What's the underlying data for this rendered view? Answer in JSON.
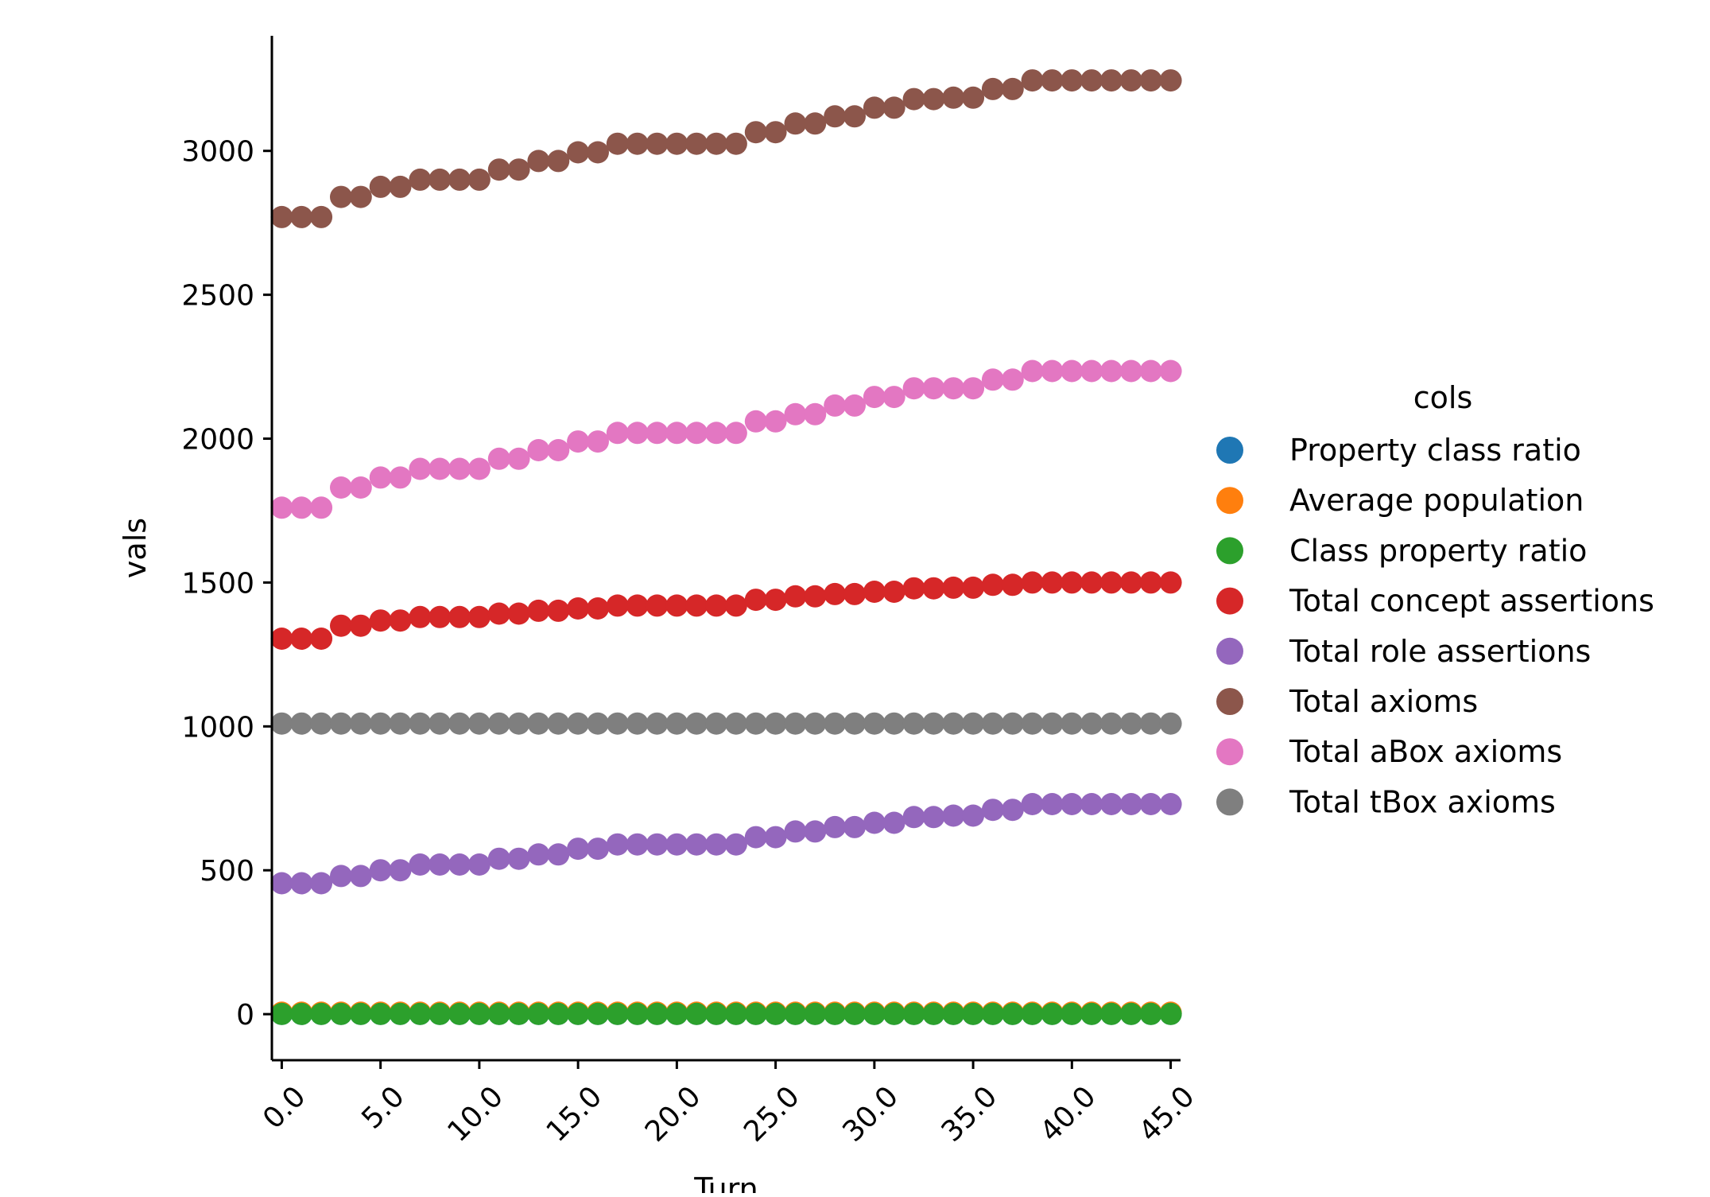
{
  "chart_data": {
    "type": "scatter",
    "title": "",
    "xlabel": "Turn",
    "ylabel": "vals",
    "xlim": [
      -0.5,
      45.5
    ],
    "ylim": [
      -160,
      3400
    ],
    "grid": false,
    "x_ticks": [
      0,
      5,
      10,
      15,
      20,
      25,
      30,
      35,
      40,
      45
    ],
    "x_tick_labels": [
      "0.0",
      "5.0",
      "10.0",
      "15.0",
      "20.0",
      "25.0",
      "30.0",
      "35.0",
      "40.0",
      "45.0"
    ],
    "y_ticks": [
      0,
      500,
      1000,
      1500,
      2000,
      2500,
      3000
    ],
    "y_tick_labels": [
      "0",
      "500",
      "1000",
      "1500",
      "2000",
      "2500",
      "3000"
    ],
    "legend": {
      "title": "cols",
      "placement": "right"
    },
    "x": [
      0,
      1,
      2,
      3,
      4,
      5,
      6,
      7,
      8,
      9,
      10,
      11,
      12,
      13,
      14,
      15,
      16,
      17,
      18,
      19,
      20,
      21,
      22,
      23,
      24,
      25,
      26,
      27,
      28,
      29,
      30,
      31,
      32,
      33,
      34,
      35,
      36,
      37,
      38,
      39,
      40,
      41,
      42,
      43,
      44,
      45
    ],
    "series": [
      {
        "name": "Property class ratio",
        "color": "#1f77b4",
        "values": [
          1,
          1,
          1,
          1,
          1,
          1,
          1,
          1,
          1,
          1,
          1,
          1,
          1,
          1,
          1,
          1,
          1,
          1,
          1,
          1,
          1,
          1,
          1,
          1,
          1,
          1,
          1,
          1,
          1,
          1,
          1,
          1,
          1,
          1,
          1,
          1,
          1,
          1,
          1,
          1,
          1,
          1,
          1,
          1,
          1,
          1
        ]
      },
      {
        "name": "Average population",
        "color": "#ff7f0e",
        "values": [
          5,
          5,
          5,
          5,
          5,
          5,
          5,
          5,
          5,
          5,
          5,
          5,
          5,
          5,
          5,
          5,
          5,
          5,
          5,
          5,
          5,
          5,
          5,
          5,
          5,
          5,
          5,
          5,
          5,
          5,
          5,
          5,
          5,
          5,
          5,
          5,
          5,
          5,
          5,
          5,
          5,
          5,
          5,
          5,
          5,
          5
        ]
      },
      {
        "name": "Class property ratio",
        "color": "#2ca02c",
        "values": [
          1,
          1,
          1,
          1,
          1,
          1,
          1,
          1,
          1,
          1,
          1,
          1,
          1,
          1,
          1,
          1,
          1,
          1,
          1,
          1,
          1,
          1,
          1,
          1,
          1,
          1,
          1,
          1,
          1,
          1,
          1,
          1,
          1,
          1,
          1,
          1,
          1,
          1,
          1,
          1,
          1,
          1,
          1,
          1,
          1,
          1
        ]
      },
      {
        "name": "Total concept assertions",
        "color": "#d62728",
        "values": [
          1305,
          1305,
          1305,
          1350,
          1350,
          1368,
          1368,
          1380,
          1380,
          1380,
          1380,
          1392,
          1392,
          1402,
          1402,
          1410,
          1410,
          1420,
          1420,
          1420,
          1420,
          1420,
          1420,
          1420,
          1440,
          1440,
          1452,
          1452,
          1460,
          1460,
          1468,
          1468,
          1480,
          1480,
          1482,
          1482,
          1492,
          1492,
          1500,
          1500,
          1500,
          1500,
          1500,
          1500,
          1500,
          1500
        ]
      },
      {
        "name": "Total role assertions",
        "color": "#9467bd",
        "values": [
          455,
          455,
          455,
          480,
          480,
          500,
          500,
          520,
          520,
          520,
          520,
          540,
          540,
          555,
          555,
          575,
          575,
          590,
          590,
          590,
          590,
          590,
          590,
          590,
          615,
          615,
          635,
          635,
          650,
          650,
          665,
          665,
          685,
          685,
          690,
          690,
          710,
          710,
          730,
          730,
          730,
          730,
          730,
          730,
          730,
          730
        ]
      },
      {
        "name": "Total axioms",
        "color": "#8c564b",
        "values": [
          2770,
          2770,
          2770,
          2840,
          2840,
          2875,
          2875,
          2900,
          2900,
          2900,
          2900,
          2935,
          2935,
          2965,
          2965,
          2995,
          2995,
          3025,
          3025,
          3025,
          3025,
          3025,
          3025,
          3025,
          3065,
          3065,
          3095,
          3095,
          3120,
          3120,
          3150,
          3150,
          3180,
          3180,
          3185,
          3185,
          3215,
          3215,
          3245,
          3245,
          3245,
          3245,
          3245,
          3245,
          3245,
          3245
        ]
      },
      {
        "name": "Total aBox axioms",
        "color": "#e377c2",
        "values": [
          1760,
          1760,
          1760,
          1830,
          1830,
          1865,
          1865,
          1895,
          1895,
          1895,
          1895,
          1930,
          1930,
          1960,
          1960,
          1990,
          1990,
          2020,
          2020,
          2020,
          2020,
          2020,
          2020,
          2020,
          2060,
          2060,
          2085,
          2085,
          2115,
          2115,
          2145,
          2145,
          2175,
          2175,
          2175,
          2175,
          2205,
          2205,
          2235,
          2235,
          2235,
          2235,
          2235,
          2235,
          2235,
          2235
        ]
      },
      {
        "name": "Total tBox axioms",
        "color": "#7f7f7f",
        "values": [
          1010,
          1010,
          1010,
          1010,
          1010,
          1010,
          1010,
          1010,
          1010,
          1010,
          1010,
          1010,
          1010,
          1010,
          1010,
          1010,
          1010,
          1010,
          1010,
          1010,
          1010,
          1010,
          1010,
          1010,
          1010,
          1010,
          1010,
          1010,
          1010,
          1010,
          1010,
          1010,
          1010,
          1010,
          1010,
          1010,
          1010,
          1010,
          1010,
          1010,
          1010,
          1010,
          1010,
          1010,
          1010,
          1010
        ]
      }
    ]
  }
}
